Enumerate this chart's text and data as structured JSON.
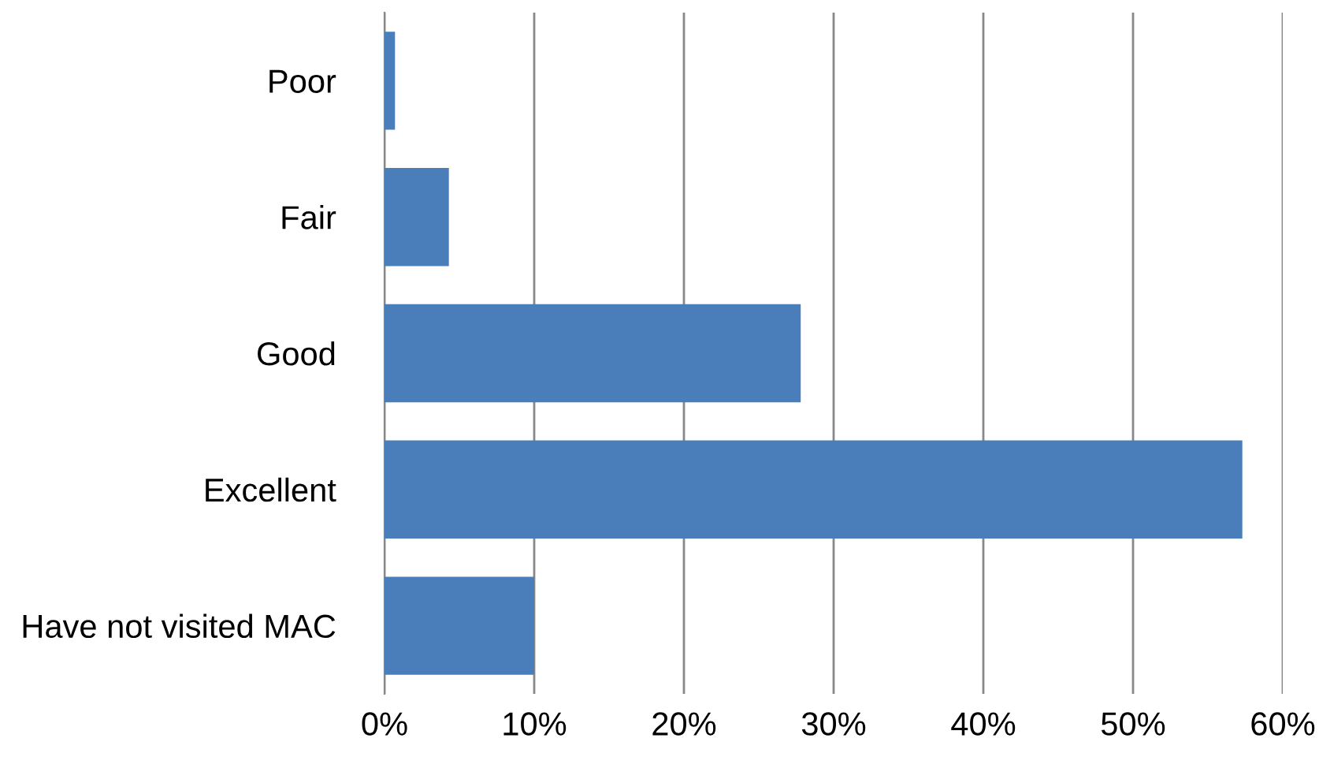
{
  "chart_data": {
    "type": "bar",
    "orientation": "horizontal",
    "categories": [
      "Poor",
      "Fair",
      "Good",
      "Excellent",
      "Have not visited MAC"
    ],
    "values": [
      0.7,
      4.3,
      27.8,
      57.3,
      10.0
    ],
    "color": "#4a7ebb",
    "xlim": [
      0,
      60
    ],
    "xticks": [
      {
        "value": 0,
        "label": "0%"
      },
      {
        "value": 10,
        "label": "10%"
      },
      {
        "value": 20,
        "label": "20%"
      },
      {
        "value": 30,
        "label": "30%"
      },
      {
        "value": 40,
        "label": "40%"
      },
      {
        "value": 50,
        "label": "50%"
      },
      {
        "value": 60,
        "label": "60%"
      }
    ],
    "grid": "x"
  }
}
